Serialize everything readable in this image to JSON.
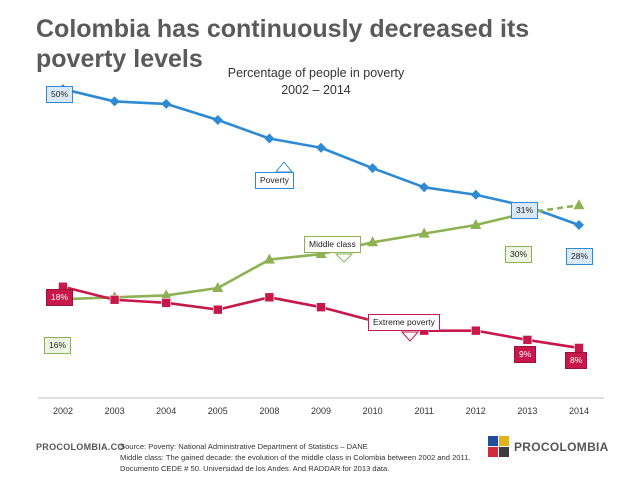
{
  "title": "Colombia has continuously decreased its poverty levels",
  "chart_data": {
    "type": "line",
    "title": "Percentage of people in poverty",
    "subtitle": "2002 – 2014",
    "categories": [
      "2002",
      "2003",
      "2004",
      "2005",
      "2008",
      "2009",
      "2010",
      "2011",
      "2012",
      "2013",
      "2014"
    ],
    "ylim": [
      0,
      56
    ],
    "series": [
      {
        "name": "Poverty",
        "color": "#2e8ad3",
        "marker": "diamond",
        "values": [
          50,
          48,
          47.6,
          45,
          42,
          40.5,
          37.2,
          34.1,
          32.9,
          31,
          28
        ]
      },
      {
        "name": "Middle class",
        "color": "#8eb253",
        "marker": "triangle",
        "values": [
          16,
          16.3,
          16.6,
          17.8,
          22.4,
          23.3,
          25.2,
          26.6,
          28,
          30,
          31.2
        ],
        "dashed_from": 9
      },
      {
        "name": "Extreme poverty",
        "color": "#c8174a",
        "marker": "square",
        "values": [
          18,
          15.9,
          15.4,
          14.3,
          16.3,
          14.7,
          12.5,
          10.9,
          10.9,
          9.4,
          8.1
        ]
      }
    ],
    "series_labels": {
      "poverty": "Poverty",
      "middle": "Middle class",
      "extreme": "Extreme poverty"
    },
    "data_labels": {
      "pov_first": "50%",
      "pov_2013": "31%",
      "pov_last": "28%",
      "mid_first": "16%",
      "mid_2013": "30%",
      "ext_first": "18%",
      "ext_2013": "9%",
      "ext_last": "8%"
    }
  },
  "footer": {
    "left_logo": "PROCOLOMBIA.CO",
    "source_lines": [
      "Source: Poverty: National Administrative Department of Statistics – DANE",
      "Middle class: The gained decade: the evolution of the middle class in Colombia between 2002 and 2011.",
      "Documento CEDE # 50. Universidad de los Andes. And RADDAR for 2013 data."
    ],
    "brand": "PROCOLOMBIA",
    "brand_colors": [
      "#1f4e9c",
      "#e3b31b",
      "#cf2a3a",
      "#3c3c3c"
    ]
  }
}
